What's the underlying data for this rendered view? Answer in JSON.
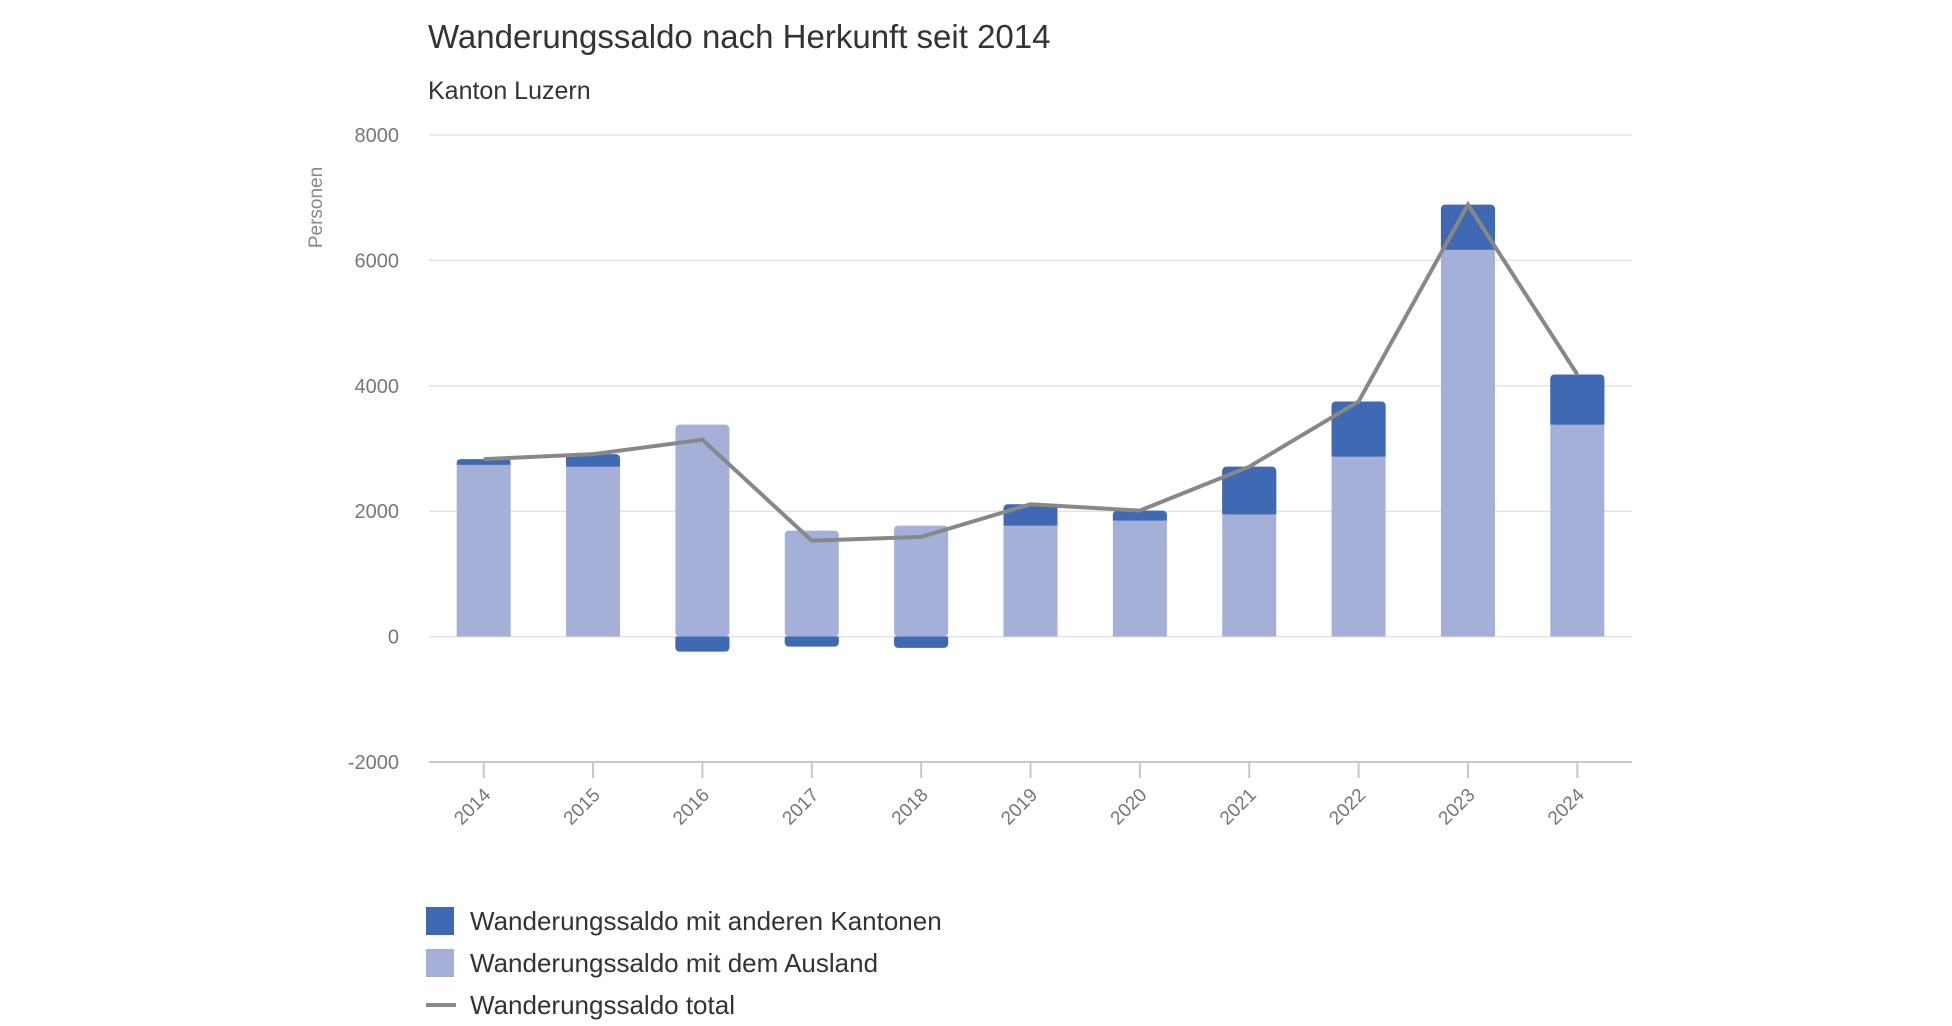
{
  "chart_data": {
    "type": "bar",
    "stacked": true,
    "title": "Wanderungssaldo nach Herkunft seit 2014",
    "subtitle": "Kanton Luzern",
    "xlabel": "",
    "ylabel": "Personen",
    "ylim": [
      -2000,
      8000
    ],
    "yticks": [
      "-2000",
      "0",
      "2000",
      "4000",
      "6000",
      "8000"
    ],
    "grid": true,
    "legend_position": "bottom-left",
    "categories": [
      "2014",
      "2015",
      "2016",
      "2017",
      "2018",
      "2019",
      "2020",
      "2021",
      "2022",
      "2023",
      "2024"
    ],
    "series": [
      {
        "name": "Wanderungssaldo mit anderen Kantonen",
        "type": "bar",
        "color": "#3f69b2",
        "values": [
          90,
          200,
          -240,
          -160,
          -180,
          340,
          160,
          760,
          880,
          720,
          800
        ]
      },
      {
        "name": "Wanderungssaldo mit dem Ausland",
        "type": "bar",
        "color": "#a5b0d9",
        "values": [
          2740,
          2710,
          3380,
          1690,
          1770,
          1770,
          1850,
          1950,
          2870,
          6170,
          3380
        ]
      },
      {
        "name": "Wanderungssaldo total",
        "type": "line",
        "color": "#888888",
        "values": [
          2830,
          2910,
          3140,
          1530,
          1590,
          2110,
          2010,
          2710,
          3750,
          6890,
          4180
        ]
      }
    ]
  }
}
